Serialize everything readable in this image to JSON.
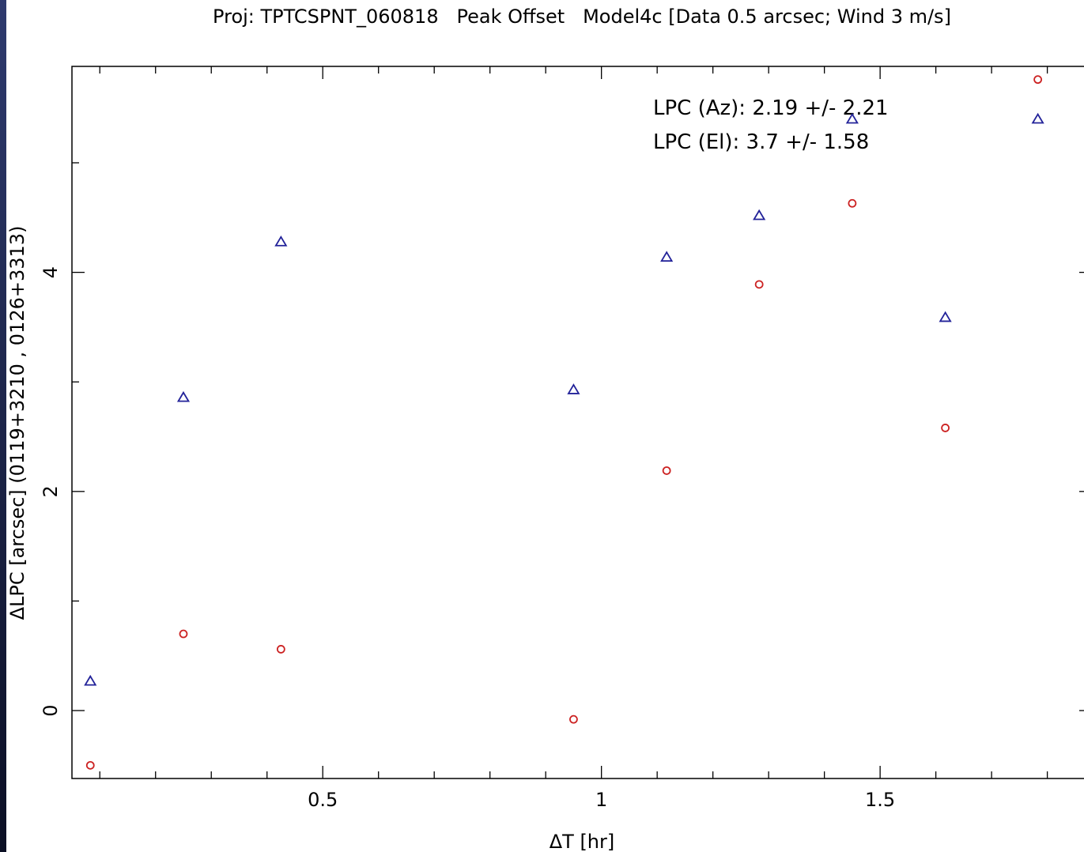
{
  "chart_data": {
    "type": "scatter",
    "title": "Proj: TPTCSPNT_060818   Peak Offset   Model4c [Data 0.5 arcsec; Wind 3 m/s]",
    "xlabel": "ΔT [hr]",
    "ylabel": "ΔLPC [arcsec] (0119+3210 , 0126+3313)",
    "xlim": [
      0.05,
      1.88
    ],
    "ylim": [
      -0.62,
      5.88
    ],
    "xticks": [
      0.5,
      1,
      1.5
    ],
    "xtick_labels": [
      "0.5",
      "1",
      "1.5"
    ],
    "yticks": [
      0,
      2,
      4
    ],
    "ytick_labels": [
      "0",
      "2",
      "4"
    ],
    "grid": false,
    "annotations": [
      "LPC (Az): 2.19 +/- 2.21",
      "LPC (El): 3.7 +/- 1.58"
    ],
    "series": [
      {
        "marker": "circle",
        "color": "#cc2222",
        "x": [
          0.083,
          0.25,
          0.425,
          0.95,
          1.117,
          1.283,
          1.45,
          1.617,
          1.783
        ],
        "y": [
          -0.5,
          0.7,
          0.56,
          -0.08,
          2.19,
          3.89,
          4.63,
          2.58,
          5.76
        ]
      },
      {
        "marker": "triangle",
        "color": "#222299",
        "x": [
          0.083,
          0.25,
          0.425,
          0.95,
          1.117,
          1.283,
          1.45,
          1.617,
          1.783
        ],
        "y": [
          0.27,
          2.86,
          4.28,
          2.93,
          4.14,
          4.52,
          5.4,
          3.59,
          5.4
        ]
      }
    ]
  }
}
